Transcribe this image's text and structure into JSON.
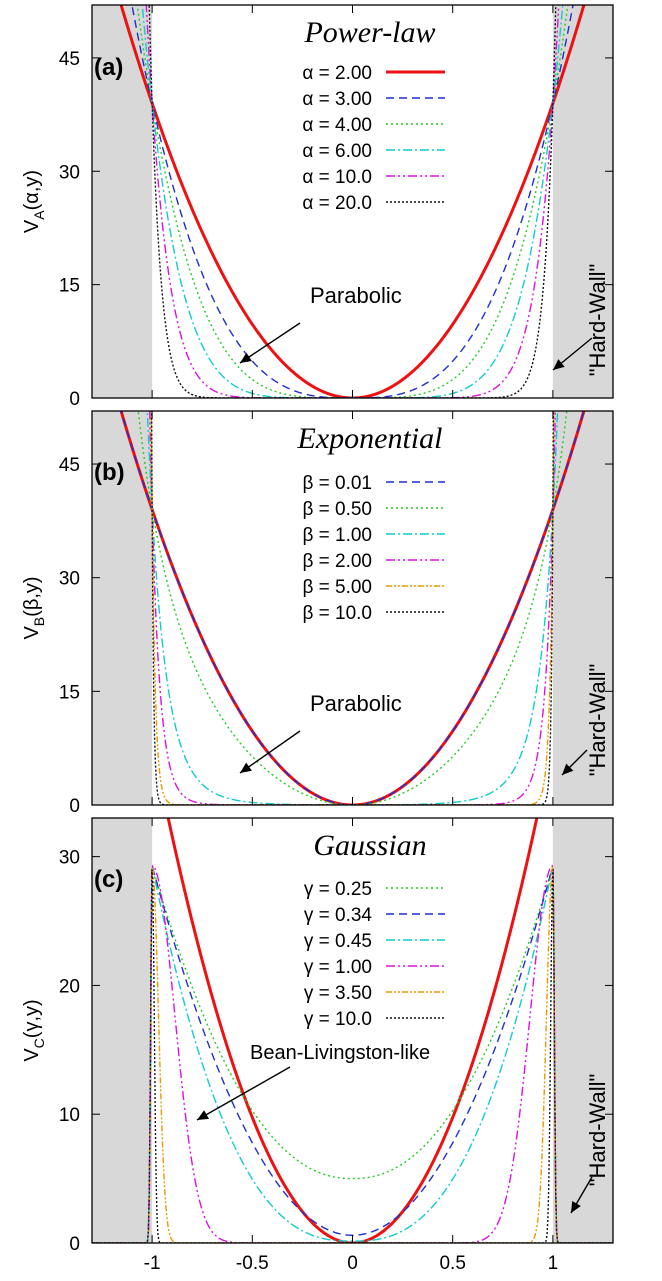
{
  "chart_data": [
    {
      "type": "line",
      "panel_label": "(a)",
      "title": "Power-law",
      "ylabel_main": "V",
      "ylabel_sub": "A",
      "ylabel_args": "(α,y)",
      "xlim": [
        -1.3,
        1.3
      ],
      "ylim": [
        0,
        52
      ],
      "yticks": [
        0,
        15,
        30,
        45
      ],
      "xticks": [
        -1,
        -0.5,
        0,
        0.5,
        1
      ],
      "potential": "power",
      "gray_regions": [
        [
          -1.3,
          -1
        ],
        [
          1,
          1.3
        ]
      ],
      "series": [
        {
          "name": "α = 2.00",
          "param": 2,
          "color": "#ee1111",
          "dash": "",
          "width": 3
        },
        {
          "name": "α = 3.00",
          "param": 3,
          "color": "#1f2fd0",
          "dash": "8,5",
          "width": 1.4
        },
        {
          "name": "α = 4.00",
          "param": 4,
          "color": "#22cc22",
          "dash": "2,3",
          "width": 1.4
        },
        {
          "name": "α = 6.00",
          "param": 6,
          "color": "#11cccc",
          "dash": "9,3,2,3",
          "width": 1.4
        },
        {
          "name": "α = 10.0",
          "param": 10,
          "color": "#dd11dd",
          "dash": "9,3,2,3,2,3",
          "width": 1.4
        },
        {
          "name": "α = 20.0",
          "param": 20,
          "color": "#111111",
          "dash": "2,2",
          "width": 1.4
        }
      ],
      "annotations": [
        {
          "text": "Parabolic",
          "kind": "parabolic"
        },
        {
          "text": "\"Hard-Wall\"",
          "kind": "hardwall"
        }
      ]
    },
    {
      "type": "line",
      "panel_label": "(b)",
      "title": "Exponential",
      "ylabel_main": "V",
      "ylabel_sub": "B",
      "ylabel_args": "(β,y)",
      "xlim": [
        -1.3,
        1.3
      ],
      "ylim": [
        0,
        52
      ],
      "yticks": [
        0,
        15,
        30,
        45
      ],
      "xticks": [
        -1,
        -0.5,
        0,
        0.5,
        1
      ],
      "potential": "exponential",
      "gray_regions": [
        [
          -1.3,
          -1
        ],
        [
          1,
          1.3
        ]
      ],
      "series": [
        {
          "name": "",
          "param": 0,
          "color": "#ee1111",
          "dash": "",
          "width": 3,
          "legend": false
        },
        {
          "name": "β = 0.01",
          "param": 0.01,
          "color": "#1f2fd0",
          "dash": "8,5",
          "width": 1.4
        },
        {
          "name": "β = 0.50",
          "param": 0.5,
          "color": "#22cc22",
          "dash": "2,3",
          "width": 1.4
        },
        {
          "name": "β = 1.00",
          "param": 1,
          "color": "#11cccc",
          "dash": "9,3,2,3",
          "width": 1.4
        },
        {
          "name": "β = 2.00",
          "param": 2,
          "color": "#dd11dd",
          "dash": "9,3,2,3,2,3",
          "width": 1.4
        },
        {
          "name": "β = 5.00",
          "param": 5,
          "color": "#ee9900",
          "dash": "6,2,2,2,2,2",
          "width": 1.4
        },
        {
          "name": "β = 10.0",
          "param": 10,
          "color": "#111111",
          "dash": "2,2",
          "width": 1.4
        }
      ],
      "annotations": [
        {
          "text": "Parabolic",
          "kind": "parabolic"
        },
        {
          "text": "\"Hard-Wall\"",
          "kind": "hardwall"
        }
      ]
    },
    {
      "type": "line",
      "panel_label": "(c)",
      "title": "Gaussian",
      "ylabel_main": "V",
      "ylabel_sub": "C",
      "ylabel_args": "(γ,y)",
      "xlim": [
        -1.3,
        1.3
      ],
      "ylim": [
        0,
        33
      ],
      "yticks": [
        0,
        10,
        20,
        30
      ],
      "xticks": [
        -1,
        -0.5,
        0,
        0.5,
        1
      ],
      "xlabel_main": "y/y",
      "xlabel_sub": "0",
      "potential": "gaussian",
      "gray_regions": [
        [
          -1.3,
          -1
        ],
        [
          1,
          1.3
        ]
      ],
      "series": [
        {
          "name": "",
          "param": 0,
          "color": "#ee1111",
          "dash": "",
          "width": 3,
          "legend": false
        },
        {
          "name": "γ = 0.25",
          "param": 0.25,
          "color": "#22cc22",
          "dash": "2,3",
          "width": 1.4
        },
        {
          "name": "γ = 0.34",
          "param": 0.34,
          "color": "#1f2fd0",
          "dash": "8,5",
          "width": 1.4
        },
        {
          "name": "γ = 0.45",
          "param": 0.45,
          "color": "#11cccc",
          "dash": "9,3,2,3",
          "width": 1.4
        },
        {
          "name": "γ = 1.00",
          "param": 1,
          "color": "#dd11dd",
          "dash": "9,3,2,3,2,3",
          "width": 1.4
        },
        {
          "name": "γ = 3.50",
          "param": 3.5,
          "color": "#ee9900",
          "dash": "6,2,2,2,2,2",
          "width": 1.4
        },
        {
          "name": "γ = 10.0",
          "param": 10,
          "color": "#111111",
          "dash": "2,2",
          "width": 1.4
        }
      ],
      "annotations": [
        {
          "text": "Bean-Livingston-like",
          "kind": "bean"
        },
        {
          "text": "\"Hard-Wall\"",
          "kind": "hardwall"
        }
      ]
    }
  ]
}
